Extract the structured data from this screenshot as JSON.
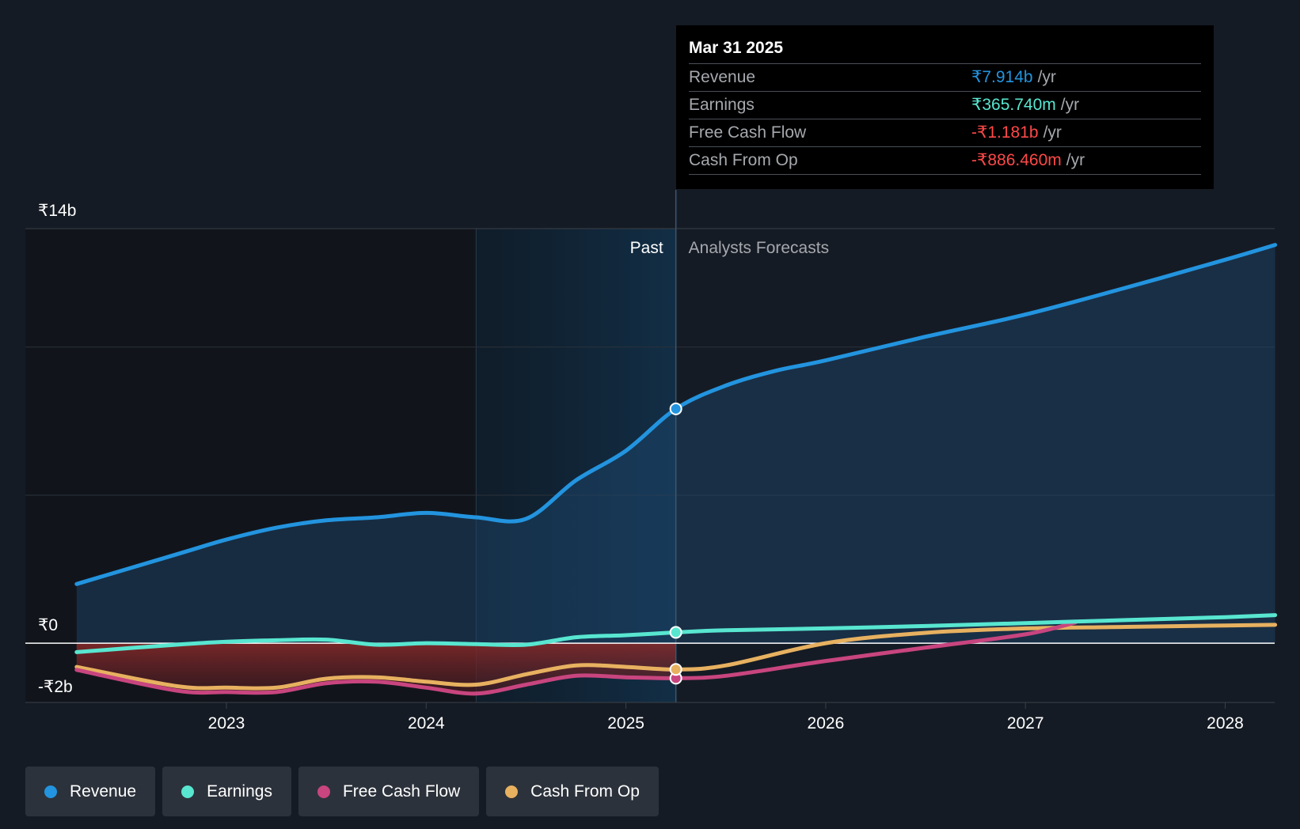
{
  "tooltip": {
    "date": "Mar 31 2025",
    "rows": [
      {
        "label": "Revenue",
        "value": "₹7.914b",
        "unit": "/yr",
        "color": "#2394df"
      },
      {
        "label": "Earnings",
        "value": "₹365.740m",
        "unit": "/yr",
        "color": "#58e6d0"
      },
      {
        "label": "Free Cash Flow",
        "value": "-₹1.181b",
        "unit": "/yr",
        "color": "#ff4848"
      },
      {
        "label": "Cash From Op",
        "value": "-₹886.460m",
        "unit": "/yr",
        "color": "#ff4848"
      }
    ]
  },
  "region_labels": {
    "past": "Past",
    "forecast": "Analysts Forecasts"
  },
  "legend": [
    {
      "label": "Revenue",
      "color": "#2394df"
    },
    {
      "label": "Earnings",
      "color": "#58e6d0"
    },
    {
      "label": "Free Cash Flow",
      "color": "#c8457f"
    },
    {
      "label": "Cash From Op",
      "color": "#e7b160"
    }
  ],
  "chart_data": {
    "type": "line",
    "y_unit": "₹ billion",
    "ylim": [
      -2,
      14
    ],
    "y_tick_labels": [
      {
        "value": 14,
        "label": "₹14b"
      },
      {
        "value": 0,
        "label": "₹0"
      },
      {
        "value": -2,
        "label": "-₹2b"
      }
    ],
    "x_tick_labels": [
      {
        "value": 2023,
        "label": "2023"
      },
      {
        "value": 2024,
        "label": "2024"
      },
      {
        "value": 2025,
        "label": "2025"
      },
      {
        "value": 2026,
        "label": "2026"
      },
      {
        "value": 2027,
        "label": "2027"
      },
      {
        "value": 2028,
        "label": "2028"
      }
    ],
    "xlim": [
      2022,
      2028.25
    ],
    "highlight_range": [
      2024.25,
      2025.25
    ],
    "past_end": 2025.25,
    "gridlines": [
      14,
      10,
      5
    ],
    "series": [
      {
        "name": "Revenue",
        "color": "#2394df",
        "x": [
          2022.25,
          2022.75,
          2023.0,
          2023.25,
          2023.5,
          2023.75,
          2024.0,
          2024.25,
          2024.5,
          2024.75,
          2025.0,
          2025.25,
          2025.5,
          2025.75,
          2026.0,
          2026.5,
          2027.0,
          2027.5,
          2028.0,
          2028.25
        ],
        "y": [
          2.0,
          3.0,
          3.5,
          3.9,
          4.15,
          4.25,
          4.4,
          4.25,
          4.2,
          5.5,
          6.5,
          7.914,
          8.7,
          9.2,
          9.55,
          10.35,
          11.1,
          12.0,
          12.95,
          13.45
        ]
      },
      {
        "name": "Earnings",
        "color": "#58e6d0",
        "x": [
          2022.25,
          2022.75,
          2023.0,
          2023.25,
          2023.5,
          2023.75,
          2024.0,
          2024.25,
          2024.5,
          2024.75,
          2025.0,
          2025.25,
          2025.5,
          2026.0,
          2026.5,
          2027.0,
          2027.5,
          2028.0,
          2028.25
        ],
        "y": [
          -0.3,
          -0.05,
          0.05,
          0.1,
          0.12,
          -0.05,
          0.0,
          -0.03,
          -0.05,
          0.2,
          0.27,
          0.366,
          0.44,
          0.5,
          0.58,
          0.68,
          0.78,
          0.88,
          0.95
        ]
      },
      {
        "name": "Free Cash Flow",
        "color": "#c8457f",
        "x": [
          2022.25,
          2022.75,
          2023.0,
          2023.25,
          2023.5,
          2023.75,
          2024.0,
          2024.25,
          2024.5,
          2024.75,
          2025.0,
          2025.25,
          2025.5,
          2026.0,
          2026.5,
          2027.0,
          2027.25
        ],
        "y": [
          -0.9,
          -1.6,
          -1.65,
          -1.65,
          -1.35,
          -1.3,
          -1.5,
          -1.7,
          -1.4,
          -1.1,
          -1.15,
          -1.181,
          -1.1,
          -0.6,
          -0.15,
          0.3,
          0.7
        ]
      },
      {
        "name": "Cash From Op",
        "color": "#e7b160",
        "x": [
          2022.25,
          2022.75,
          2023.0,
          2023.25,
          2023.5,
          2023.75,
          2024.0,
          2024.25,
          2024.5,
          2024.75,
          2025.0,
          2025.25,
          2025.5,
          2026.0,
          2026.5,
          2027.0,
          2027.5,
          2028.0,
          2028.25
        ],
        "y": [
          -0.8,
          -1.45,
          -1.5,
          -1.5,
          -1.2,
          -1.15,
          -1.3,
          -1.4,
          -1.05,
          -0.75,
          -0.8,
          -0.886,
          -0.75,
          0.0,
          0.35,
          0.5,
          0.55,
          0.6,
          0.62
        ]
      }
    ]
  }
}
